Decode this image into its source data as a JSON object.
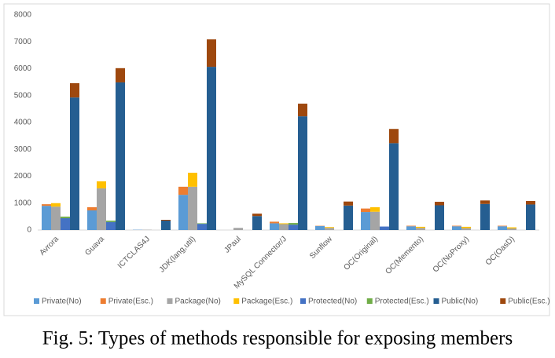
{
  "chart_data": {
    "type": "bar",
    "caption": "Fig. 5: Types of methods responsible for exposing members",
    "categories": [
      "Avrora",
      "Guava",
      "ICTCLAS4J",
      "JDK(lang,util)",
      "JPaul",
      "MySQL Connector/J",
      "Sunflow",
      "OC(Original)",
      "OC(Memento)",
      "OC(NoProxy)",
      "OC(OasD)"
    ],
    "series": [
      {
        "name": "Private(No)",
        "color": "#5b9bd5",
        "values": [
          900,
          730,
          10,
          1310,
          0,
          250,
          150,
          670,
          140,
          140,
          140
        ]
      },
      {
        "name": "Private(Esc.)",
        "color": "#ed7d31",
        "values": [
          60,
          120,
          0,
          300,
          0,
          60,
          10,
          130,
          20,
          20,
          20
        ]
      },
      {
        "name": "Package(No)",
        "color": "#a5a5a5",
        "values": [
          870,
          1550,
          10,
          1610,
          80,
          220,
          80,
          680,
          80,
          70,
          60
        ]
      },
      {
        "name": "Package(Esc.)",
        "color": "#ffc000",
        "values": [
          130,
          260,
          0,
          520,
          0,
          30,
          30,
          170,
          40,
          50,
          40
        ]
      },
      {
        "name": "Protected(No)",
        "color": "#4472c4",
        "values": [
          440,
          300,
          0,
          230,
          0,
          200,
          0,
          130,
          0,
          0,
          0
        ]
      },
      {
        "name": "Protected(Esc.)",
        "color": "#70ad47",
        "values": [
          60,
          50,
          0,
          20,
          0,
          60,
          0,
          0,
          0,
          0,
          0
        ]
      },
      {
        "name": "Public(No)",
        "color": "#255e91",
        "values": [
          4930,
          5490,
          350,
          6070,
          520,
          4230,
          910,
          3230,
          920,
          970,
          950
        ]
      },
      {
        "name": "Public(Esc.)",
        "color": "#9e480e",
        "values": [
          530,
          530,
          30,
          1020,
          90,
          470,
          150,
          530,
          130,
          130,
          130
        ]
      }
    ],
    "ylim": [
      0,
      8000
    ],
    "yticks": [
      0,
      1000,
      2000,
      3000,
      4000,
      5000,
      6000,
      7000,
      8000
    ],
    "grid": false,
    "legend": "bottom"
  }
}
